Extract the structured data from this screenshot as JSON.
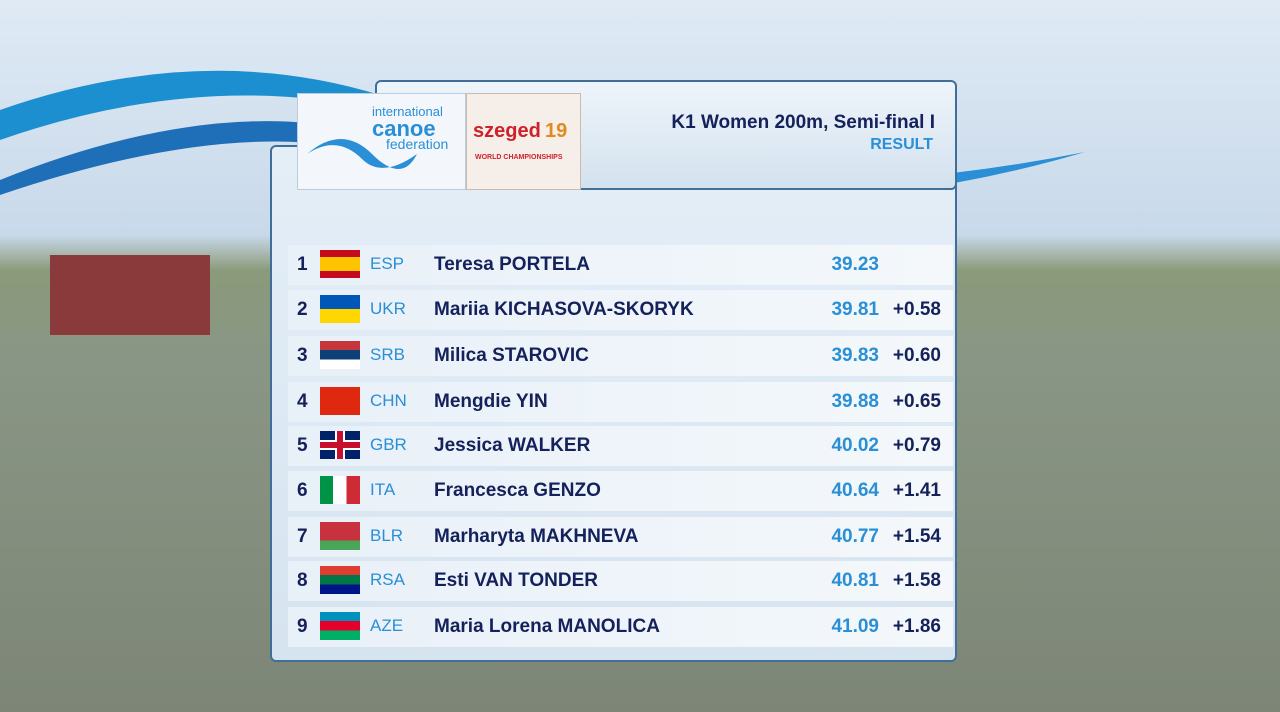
{
  "header": {
    "title": "K1 Women 200m, Semi-final I",
    "subtitle": "RESULT"
  },
  "logos": {
    "icf": [
      "international",
      "canoe",
      "federation"
    ],
    "event": {
      "name": "szeged",
      "year": "19",
      "tagline": "WORLD CHAMPIONSHIPS"
    }
  },
  "table": {
    "rows": [
      {
        "rank": "1",
        "country": "ESP",
        "name": "Teresa PORTELA",
        "time": "39.23"
      },
      {
        "rank": "2",
        "country": "UKR",
        "name": "Mariia KICHASOVA-SKORYK",
        "time": "39.81",
        "gap": "+0.58"
      },
      {
        "rank": "3",
        "country": "SRB",
        "name": "Milica STAROVIC",
        "time": "39.83",
        "gap": "+0.60"
      },
      {
        "rank": "4",
        "country": "CHN",
        "name": "Mengdie YIN",
        "time": "39.88",
        "gap": "+0.65"
      },
      {
        "rank": "5",
        "country": "GBR",
        "name": "Jessica WALKER",
        "time": "40.02",
        "gap": "+0.79"
      },
      {
        "rank": "6",
        "country": "ITA",
        "name": "Francesca GENZO",
        "time": "40.64",
        "gap": "+1.41"
      },
      {
        "rank": "7",
        "country": "BLR",
        "name": "Marharyta MAKHNEVA",
        "time": "40.77",
        "gap": "+1.54"
      },
      {
        "rank": "8",
        "country": "RSA",
        "name": "Esti VAN TONDER",
        "time": "40.81",
        "gap": "+1.58"
      },
      {
        "rank": "9",
        "country": "AZE",
        "name": "Maria Lorena MANOLICA",
        "time": "41.09",
        "gap": "+1.86"
      }
    ]
  }
}
